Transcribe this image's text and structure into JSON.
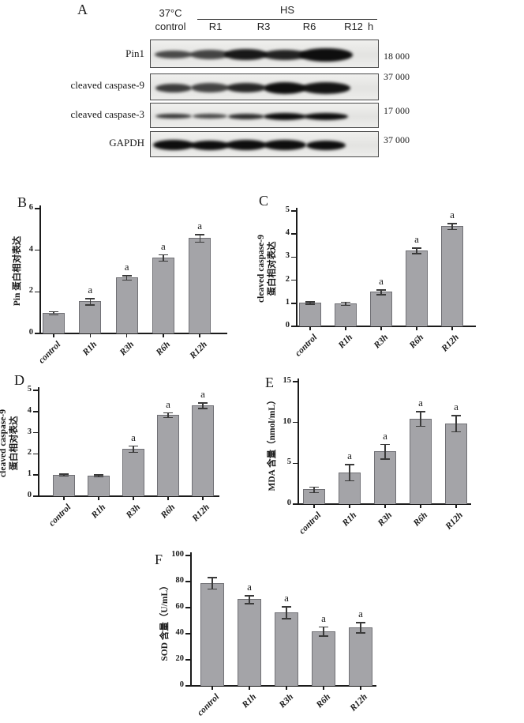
{
  "panel_a": {
    "letter": "A",
    "header": {
      "temp": "37°C",
      "control": "control",
      "hs": "HS",
      "lanes": [
        "R1",
        "R3",
        "R6",
        "R12"
      ],
      "unit": "h"
    },
    "blots": [
      {
        "label": "Pin1",
        "mw": "18 000",
        "bands": [
          [
            48,
            10,
            0.72
          ],
          [
            50,
            12,
            0.75
          ],
          [
            55,
            14,
            0.95
          ],
          [
            56,
            13,
            0.9
          ],
          [
            68,
            17,
            1.0
          ]
        ]
      },
      {
        "label": "cleaved caspase-9",
        "mw": "37 000",
        "bands": [
          [
            46,
            11,
            0.78
          ],
          [
            48,
            12,
            0.75
          ],
          [
            50,
            12,
            0.88
          ],
          [
            54,
            15,
            1.0
          ],
          [
            62,
            15,
            0.97
          ]
        ]
      },
      {
        "label": "cleaved caspase-3",
        "mw": "17 000",
        "bands": [
          [
            46,
            6,
            0.8
          ],
          [
            44,
            6,
            0.72
          ],
          [
            46,
            7,
            0.85
          ],
          [
            54,
            9,
            1.0
          ],
          [
            56,
            9,
            1.0
          ]
        ]
      },
      {
        "label": "GAPDH",
        "mw": "37 000",
        "bands": [
          [
            52,
            13,
            1.0
          ],
          [
            50,
            12,
            1.0
          ],
          [
            52,
            13,
            1.0
          ],
          [
            54,
            13,
            1.0
          ],
          [
            50,
            12,
            1.0
          ]
        ]
      }
    ]
  },
  "chart_data": [
    {
      "id": "B",
      "panel_letter": "B",
      "type": "bar",
      "categories": [
        "control",
        "R1h",
        "R3h",
        "R6h",
        "R12h"
      ],
      "values": [
        1.0,
        1.55,
        2.7,
        3.65,
        4.6
      ],
      "errors": [
        0.07,
        0.15,
        0.1,
        0.15,
        0.18
      ],
      "sig": [
        "",
        "a",
        "a",
        "a",
        "a"
      ],
      "ylim": [
        0,
        6
      ],
      "yticks": [
        0,
        2,
        4,
        6
      ],
      "ylabel_lines": [
        "Pin 蛋白相对表达"
      ],
      "xlabel": "",
      "title": "",
      "grid": false,
      "legend": "none"
    },
    {
      "id": "C",
      "panel_letter": "C",
      "type": "bar",
      "categories": [
        "control",
        "R1h",
        "R3h",
        "R6h",
        "R12h"
      ],
      "values": [
        1.03,
        1.0,
        1.5,
        3.3,
        4.35
      ],
      "errors": [
        0.05,
        0.07,
        0.1,
        0.12,
        0.13
      ],
      "sig": [
        "",
        "",
        "a",
        "a",
        "a"
      ],
      "ylim": [
        0,
        5
      ],
      "yticks": [
        0,
        1,
        2,
        3,
        4,
        5
      ],
      "ylabel_lines": [
        "cleaved caspase-9",
        "蛋白相对表达"
      ],
      "xlabel": "",
      "title": "",
      "grid": false,
      "legend": "none"
    },
    {
      "id": "D",
      "panel_letter": "D",
      "type": "bar",
      "categories": [
        "control",
        "R1h",
        "R3h",
        "R6h",
        "R12h"
      ],
      "values": [
        1.02,
        0.98,
        2.25,
        3.85,
        4.3
      ],
      "errors": [
        0.05,
        0.05,
        0.15,
        0.12,
        0.13
      ],
      "sig": [
        "",
        "",
        "a",
        "a",
        "a"
      ],
      "ylim": [
        0,
        5
      ],
      "yticks": [
        0,
        1,
        2,
        3,
        4,
        5
      ],
      "ylabel_lines": [
        "cleaved caspase-9",
        "蛋白相对表达"
      ],
      "xlabel": "",
      "title": "",
      "grid": false,
      "legend": "none"
    },
    {
      "id": "E",
      "panel_letter": "E",
      "type": "bar",
      "categories": [
        "control",
        "R1h",
        "R3h",
        "R6h",
        "R12h"
      ],
      "values": [
        1.8,
        3.9,
        6.5,
        10.5,
        9.9
      ],
      "errors": [
        0.35,
        1.0,
        0.9,
        0.9,
        1.0
      ],
      "sig": [
        "",
        "a",
        "a",
        "a",
        "a"
      ],
      "ylim": [
        0,
        15
      ],
      "yticks": [
        0,
        5,
        10,
        15
      ],
      "ylabel_lines": [
        "MDA 含量（nmol/mL）"
      ],
      "xlabel": "",
      "title": "",
      "grid": false,
      "legend": "none"
    },
    {
      "id": "F",
      "panel_letter": "F",
      "type": "bar",
      "categories": [
        "control",
        "R1h",
        "R3h",
        "R6h",
        "R12h"
      ],
      "values": [
        79,
        66.5,
        56.5,
        42,
        45
      ],
      "errors": [
        4.5,
        3,
        4.5,
        3.5,
        4
      ],
      "sig": [
        "",
        "a",
        "a",
        "a",
        "a"
      ],
      "ylim": [
        0,
        100
      ],
      "yticks": [
        0,
        20,
        40,
        60,
        80,
        100
      ],
      "ylabel_lines": [
        "SOD 含量（U/mL）"
      ],
      "xlabel": "",
      "title": "",
      "grid": false,
      "legend": "none"
    }
  ],
  "colors": {
    "bar_fill": "#a4a4a8",
    "bar_border": "#707075",
    "axis": "#1b1b1b",
    "band": "#0e0e0e",
    "blot_bg": "#e9e9e7",
    "blot_border": "#4a4a4a"
  }
}
